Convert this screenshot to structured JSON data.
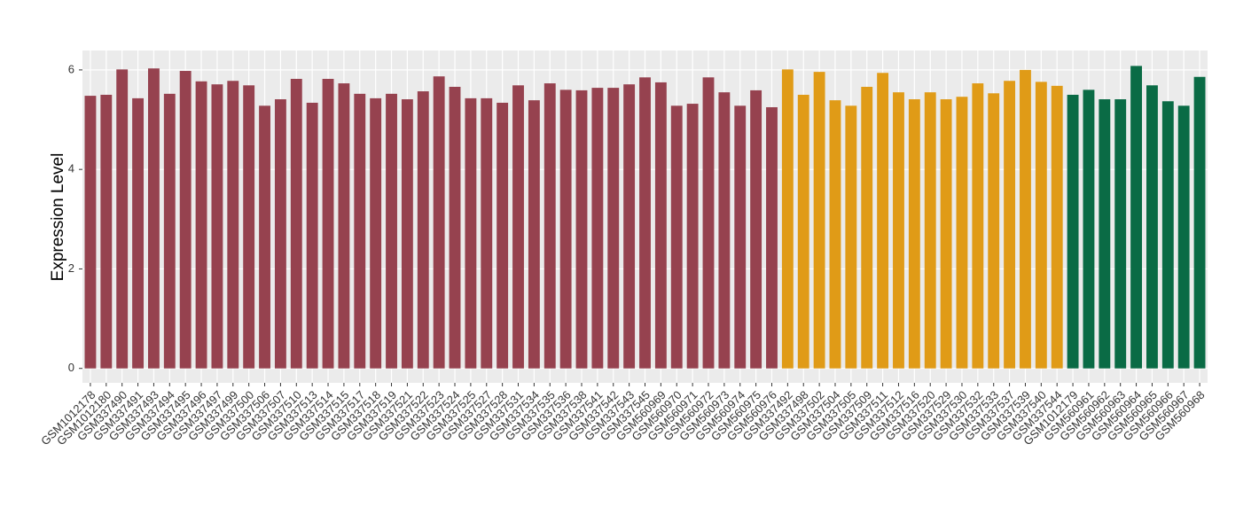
{
  "chart_data": {
    "type": "bar",
    "y_label": "Expression Level",
    "categories": [
      "GSM1012178",
      "GSM1012180",
      "GSM337490",
      "GSM337491",
      "GSM337493",
      "GSM337494",
      "GSM337495",
      "GSM337496",
      "GSM337497",
      "GSM337499",
      "GSM337500",
      "GSM337506",
      "GSM337507",
      "GSM337510",
      "GSM337513",
      "GSM337514",
      "GSM337515",
      "GSM337517",
      "GSM337518",
      "GSM337519",
      "GSM337521",
      "GSM337522",
      "GSM337523",
      "GSM337524",
      "GSM337525",
      "GSM337527",
      "GSM337528",
      "GSM337531",
      "GSM337534",
      "GSM337535",
      "GSM337536",
      "GSM337538",
      "GSM337541",
      "GSM337542",
      "GSM337543",
      "GSM337545",
      "GSM560969",
      "GSM560970",
      "GSM560971",
      "GSM560972",
      "GSM560973",
      "GSM560974",
      "GSM560975",
      "GSM560976",
      "GSM337492",
      "GSM337498",
      "GSM337502",
      "GSM337504",
      "GSM337505",
      "GSM337509",
      "GSM337511",
      "GSM337512",
      "GSM337516",
      "GSM337520",
      "GSM337529",
      "GSM337530",
      "GSM337532",
      "GSM337533",
      "GSM337537",
      "GSM337539",
      "GSM337540",
      "GSM337544",
      "GSM1012179",
      "GSM560961",
      "GSM560962",
      "GSM560963",
      "GSM560964",
      "GSM560965",
      "GSM560966",
      "GSM560967",
      "GSM560968"
    ],
    "values": [
      5.48,
      5.5,
      6.01,
      5.43,
      6.03,
      5.52,
      5.98,
      5.77,
      5.71,
      5.78,
      5.69,
      5.28,
      5.41,
      5.82,
      5.34,
      5.82,
      5.73,
      5.52,
      5.43,
      5.52,
      5.41,
      5.57,
      5.87,
      5.66,
      5.43,
      5.43,
      5.34,
      5.69,
      5.39,
      5.73,
      5.6,
      5.59,
      5.64,
      5.64,
      5.71,
      5.85,
      5.75,
      5.28,
      5.32,
      5.85,
      5.55,
      5.28,
      5.59,
      5.25,
      6.01,
      5.5,
      5.96,
      5.39,
      5.28,
      5.66,
      5.94,
      5.55,
      5.41,
      5.55,
      5.41,
      5.46,
      5.73,
      5.53,
      5.78,
      6.0,
      5.76,
      5.68,
      5.5,
      5.6,
      5.41,
      5.41,
      6.08,
      5.69,
      5.37,
      5.28,
      5.86
    ],
    "colors": [
      "#96424f",
      "#96424f",
      "#96424f",
      "#96424f",
      "#96424f",
      "#96424f",
      "#96424f",
      "#96424f",
      "#96424f",
      "#96424f",
      "#96424f",
      "#96424f",
      "#96424f",
      "#96424f",
      "#96424f",
      "#96424f",
      "#96424f",
      "#96424f",
      "#96424f",
      "#96424f",
      "#96424f",
      "#96424f",
      "#96424f",
      "#96424f",
      "#96424f",
      "#96424f",
      "#96424f",
      "#96424f",
      "#96424f",
      "#96424f",
      "#96424f",
      "#96424f",
      "#96424f",
      "#96424f",
      "#96424f",
      "#96424f",
      "#96424f",
      "#96424f",
      "#96424f",
      "#96424f",
      "#96424f",
      "#96424f",
      "#96424f",
      "#96424f",
      "#e09b17",
      "#e09b17",
      "#e09b17",
      "#e09b17",
      "#e09b17",
      "#e09b17",
      "#e09b17",
      "#e09b17",
      "#e09b17",
      "#e09b17",
      "#e09b17",
      "#e09b17",
      "#e09b17",
      "#e09b17",
      "#e09b17",
      "#e09b17",
      "#e09b17",
      "#e09b17",
      "#0a6b45",
      "#0a6b45",
      "#0a6b45",
      "#0a6b45",
      "#0a6b45",
      "#0a6b45",
      "#0a6b45",
      "#0a6b45",
      "#0a6b45"
    ],
    "ylim": [
      -0.29,
      6.39
    ],
    "yticks": [
      0,
      2,
      4,
      6
    ],
    "grid": true
  }
}
